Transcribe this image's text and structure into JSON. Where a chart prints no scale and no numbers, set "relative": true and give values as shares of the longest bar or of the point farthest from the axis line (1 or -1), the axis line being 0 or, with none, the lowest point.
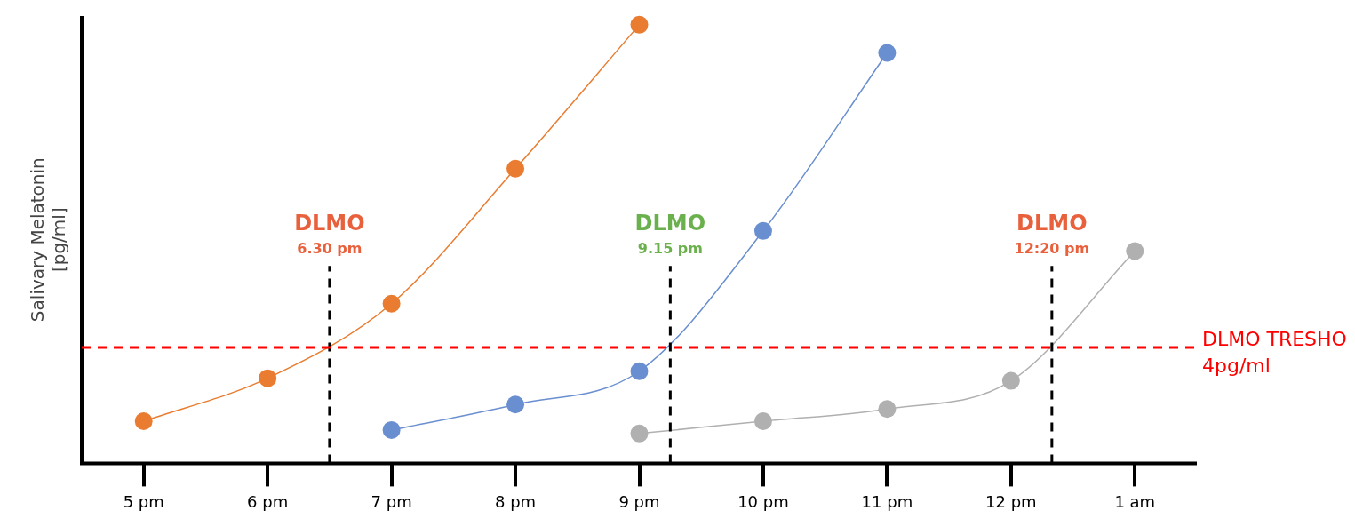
{
  "chart_data": {
    "type": "line",
    "ylabel": "Salivary Melatonin\n[pg/ml]",
    "relative": true,
    "grid": false,
    "legend": false,
    "marker": "circle",
    "line_style": "solid",
    "categories": [
      "5 pm",
      "6 pm",
      "7 pm",
      "8 pm",
      "9 pm",
      "10 pm",
      "11 pm",
      "12 pm",
      "1 am"
    ],
    "series": [
      {
        "color": "#e97c30",
        "values": [
          0.096,
          0.194,
          0.364,
          0.672,
          1,
          null,
          null,
          null,
          null
        ]
      },
      {
        "color": "#6a8fd0",
        "values": [
          null,
          null,
          0.076,
          0.134,
          0.21,
          0.53,
          0.936,
          null,
          null
        ]
      },
      {
        "color": "#b0b0b0",
        "values": [
          null,
          null,
          null,
          null,
          0.068,
          0.096,
          0.124,
          0.188,
          0.484
        ]
      }
    ],
    "ref_lines": [
      {
        "axis": "y",
        "value": 0.264,
        "label": "DLMO TRESHO\n4pg/ml",
        "color": "#ff0000",
        "line_style": "dashed"
      }
    ],
    "annotations": [
      "DLMO\n6.30 pm",
      "DLMO\n9.15 pm",
      "DLMO\n12:20 pm"
    ]
  }
}
